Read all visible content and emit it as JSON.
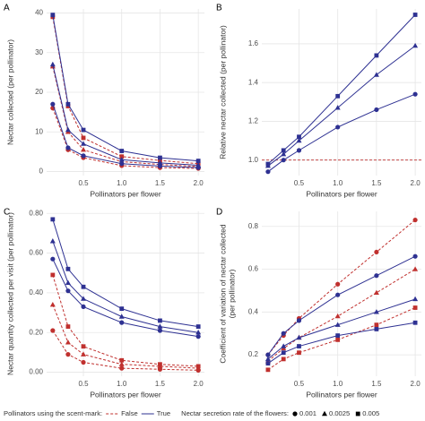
{
  "chart_data": [
    {
      "type": "line",
      "panel": "A",
      "ylabel": [
        "Nectar collected (per pollinator)"
      ],
      "xlabel": "Pollinators per flower",
      "x": [
        0.1,
        0.3,
        0.5,
        1.0,
        1.5,
        2.0
      ],
      "xlim": [
        0.02,
        2.08
      ],
      "xticks": [
        0.5,
        {
          "value": 1.0,
          "label": "1.0"
        },
        1.5,
        {
          "value": 2.0,
          "label": "2.0"
        }
      ],
      "ylim": [
        -1,
        41
      ],
      "yticks": [
        0,
        10,
        20,
        30,
        40
      ],
      "grid": true,
      "series": [
        {
          "scent_mark": "False",
          "rate": "0.001",
          "marker": "circle",
          "color": "#c0302e",
          "dashed": true,
          "values": [
            16,
            5.5,
            3.5,
            1.5,
            1.0,
            0.8
          ]
        },
        {
          "scent_mark": "False",
          "rate": "0.0025",
          "marker": "triangle",
          "color": "#c0302e",
          "dashed": true,
          "values": [
            26.5,
            10,
            5.5,
            2.5,
            1.8,
            1.3
          ]
        },
        {
          "scent_mark": "False",
          "rate": "0.005",
          "marker": "square",
          "color": "#c0302e",
          "dashed": true,
          "values": [
            39,
            16.5,
            8.5,
            3.8,
            2.8,
            2.0
          ]
        },
        {
          "scent_mark": "True",
          "rate": "0.001",
          "marker": "circle",
          "color": "#2e3192",
          "dashed": false,
          "values": [
            17,
            6,
            4,
            2,
            1.4,
            1
          ]
        },
        {
          "scent_mark": "True",
          "rate": "0.0025",
          "marker": "triangle",
          "color": "#2e3192",
          "dashed": false,
          "values": [
            27,
            10.5,
            7,
            3,
            2.2,
            1.6
          ]
        },
        {
          "scent_mark": "True",
          "rate": "0.005",
          "marker": "square",
          "color": "#2e3192",
          "dashed": false,
          "values": [
            39.5,
            17,
            10.5,
            5.2,
            3.5,
            2.7
          ]
        }
      ]
    },
    {
      "type": "line",
      "panel": "B",
      "ylabel": [
        "Relative nectar collected (per pollinator)"
      ],
      "xlabel": "Pollinators per flower",
      "x": [
        0.1,
        0.3,
        0.5,
        1.0,
        1.5,
        2.0
      ],
      "xlim": [
        0.02,
        2.08
      ],
      "xticks": [
        0.5,
        {
          "value": 1.0,
          "label": "1.0"
        },
        1.5,
        {
          "value": 2.0,
          "label": "2.0"
        }
      ],
      "ylim": [
        0.92,
        1.78
      ],
      "yticks": [
        {
          "value": 1.0,
          "label": "1.0"
        },
        1.2,
        1.4,
        1.6
      ],
      "grid": true,
      "hline": {
        "value": 1.0,
        "color": "#c0302e",
        "dashed": true
      },
      "series": [
        {
          "scent_mark": "True",
          "rate": "0.001",
          "marker": "circle",
          "color": "#2e3192",
          "dashed": false,
          "values": [
            0.94,
            1.0,
            1.05,
            1.17,
            1.26,
            1.34
          ]
        },
        {
          "scent_mark": "True",
          "rate": "0.0025",
          "marker": "triangle",
          "color": "#2e3192",
          "dashed": false,
          "values": [
            0.97,
            1.03,
            1.1,
            1.27,
            1.44,
            1.59
          ]
        },
        {
          "scent_mark": "True",
          "rate": "0.005",
          "marker": "square",
          "color": "#2e3192",
          "dashed": false,
          "values": [
            0.98,
            1.05,
            1.12,
            1.33,
            1.54,
            1.75
          ]
        }
      ]
    },
    {
      "type": "line",
      "panel": "C",
      "ylabel": [
        "Nectar quantity collected per visit (per pollinator)"
      ],
      "xlabel": "Pollinators per flower",
      "x": [
        0.1,
        0.3,
        0.5,
        1.0,
        1.5,
        2.0
      ],
      "xlim": [
        0.02,
        2.08
      ],
      "xticks": [
        0.5,
        {
          "value": 1.0,
          "label": "1.0"
        },
        1.5,
        {
          "value": 2.0,
          "label": "2.0"
        }
      ],
      "ylim": [
        -0.02,
        0.81
      ],
      "yticks": [
        {
          "value": 0,
          "label": "0.00"
        },
        {
          "value": 0.2,
          "label": "0.20"
        },
        {
          "value": 0.4,
          "label": "0.40"
        },
        {
          "value": 0.6,
          "label": "0.60"
        },
        {
          "value": 0.8,
          "label": "0.80"
        }
      ],
      "grid": true,
      "series": [
        {
          "scent_mark": "False",
          "rate": "0.001",
          "marker": "circle",
          "color": "#c0302e",
          "dashed": true,
          "values": [
            0.21,
            0.09,
            0.05,
            0.02,
            0.015,
            0.01
          ]
        },
        {
          "scent_mark": "False",
          "rate": "0.0025",
          "marker": "triangle",
          "color": "#c0302e",
          "dashed": true,
          "values": [
            0.34,
            0.15,
            0.09,
            0.04,
            0.03,
            0.02
          ]
        },
        {
          "scent_mark": "False",
          "rate": "0.005",
          "marker": "square",
          "color": "#c0302e",
          "dashed": true,
          "values": [
            0.49,
            0.23,
            0.13,
            0.06,
            0.04,
            0.03
          ]
        },
        {
          "scent_mark": "True",
          "rate": "0.001",
          "marker": "circle",
          "color": "#2e3192",
          "dashed": false,
          "values": [
            0.57,
            0.41,
            0.33,
            0.25,
            0.21,
            0.18
          ]
        },
        {
          "scent_mark": "True",
          "rate": "0.0025",
          "marker": "triangle",
          "color": "#2e3192",
          "dashed": false,
          "values": [
            0.66,
            0.45,
            0.37,
            0.28,
            0.23,
            0.2
          ]
        },
        {
          "scent_mark": "True",
          "rate": "0.005",
          "marker": "square",
          "color": "#2e3192",
          "dashed": false,
          "values": [
            0.77,
            0.52,
            0.43,
            0.32,
            0.26,
            0.23
          ]
        }
      ]
    },
    {
      "type": "line",
      "panel": "D",
      "ylabel": [
        "Coefficient of variation of nectar collected",
        "(per pollinator)"
      ],
      "xlabel": "Pollinators per flower",
      "x": [
        0.1,
        0.3,
        0.5,
        1.0,
        1.5,
        2.0
      ],
      "xlim": [
        0.02,
        2.08
      ],
      "xticks": [
        0.5,
        {
          "value": 1.0,
          "label": "1.0"
        },
        1.5,
        {
          "value": 2.0,
          "label": "2.0"
        }
      ],
      "ylim": [
        0.1,
        0.87
      ],
      "yticks": [
        0.2,
        0.4,
        0.6,
        0.8
      ],
      "grid": true,
      "series": [
        {
          "scent_mark": "False",
          "rate": "0.001",
          "marker": "circle",
          "color": "#c0302e",
          "dashed": true,
          "values": [
            0.2,
            0.29,
            0.37,
            0.53,
            0.68,
            0.83
          ]
        },
        {
          "scent_mark": "False",
          "rate": "0.0025",
          "marker": "triangle",
          "color": "#c0302e",
          "dashed": true,
          "values": [
            0.17,
            0.23,
            0.28,
            0.38,
            0.49,
            0.6
          ]
        },
        {
          "scent_mark": "False",
          "rate": "0.005",
          "marker": "square",
          "color": "#c0302e",
          "dashed": true,
          "values": [
            0.13,
            0.18,
            0.21,
            0.27,
            0.34,
            0.42
          ]
        },
        {
          "scent_mark": "True",
          "rate": "0.001",
          "marker": "circle",
          "color": "#2e3192",
          "dashed": false,
          "values": [
            0.2,
            0.3,
            0.36,
            0.48,
            0.57,
            0.66
          ]
        },
        {
          "scent_mark": "True",
          "rate": "0.0025",
          "marker": "triangle",
          "color": "#2e3192",
          "dashed": false,
          "values": [
            0.18,
            0.24,
            0.28,
            0.34,
            0.4,
            0.46
          ]
        },
        {
          "scent_mark": "True",
          "rate": "0.005",
          "marker": "square",
          "color": "#2e3192",
          "dashed": false,
          "values": [
            0.16,
            0.21,
            0.24,
            0.29,
            0.32,
            0.35
          ]
        }
      ]
    }
  ],
  "legend": {
    "scent_title": "Pollinators using the scent-mark:",
    "scent": [
      {
        "label": "False",
        "color": "#c0302e",
        "dashed": true
      },
      {
        "label": "True",
        "color": "#2e3192",
        "dashed": false
      }
    ],
    "rate_title": "Nectar secretion rate of the flowers:",
    "rate": [
      {
        "label": "0.001",
        "marker": "circle"
      },
      {
        "label": "0.0025",
        "marker": "triangle"
      },
      {
        "label": "0.005",
        "marker": "square"
      }
    ]
  }
}
